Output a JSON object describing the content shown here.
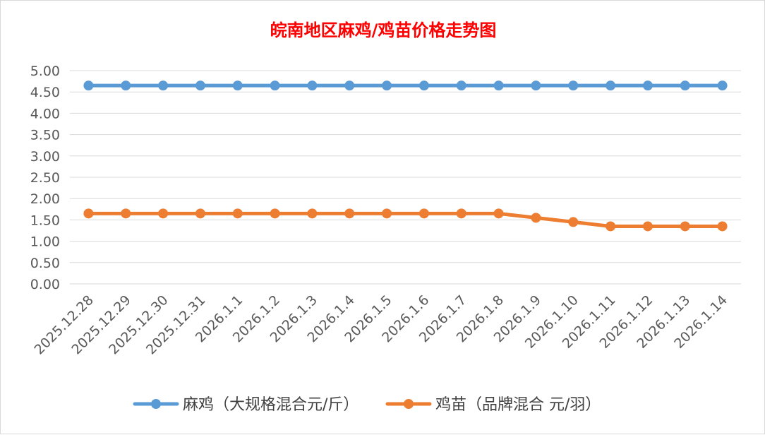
{
  "chart_data": {
    "type": "line",
    "title": "皖南地区麻鸡/鸡苗价格走势图",
    "categories": [
      "2025.12.28",
      "2025.12.29",
      "2025.12.30",
      "2025.12.31",
      "2026.1.1",
      "2026.1.2",
      "2026.1.3",
      "2026.1.4",
      "2026.1.5",
      "2026.1.6",
      "2026.1.7",
      "2026.1.8",
      "2026.1.9",
      "2026.1.10",
      "2026.1.11",
      "2026.1.12",
      "2026.1.13",
      "2026.1.14"
    ],
    "ylim": [
      0,
      5
    ],
    "ytick_labels": [
      "5.00",
      "4.50",
      "4.00",
      "3.50",
      "3.00",
      "2.50",
      "2.00",
      "1.50",
      "1.00",
      "0.50",
      "0.00"
    ],
    "grid": true,
    "legend_position": "bottom",
    "series": [
      {
        "name": "麻鸡（大规格混合元/斤）",
        "color": "#5b9bd5",
        "values": [
          4.65,
          4.65,
          4.65,
          4.65,
          4.65,
          4.65,
          4.65,
          4.65,
          4.65,
          4.65,
          4.65,
          4.65,
          4.65,
          4.65,
          4.65,
          4.65,
          4.65,
          4.65
        ]
      },
      {
        "name": "鸡苗（品牌混合 元/羽）",
        "color": "#ed7d31",
        "values": [
          1.65,
          1.65,
          1.65,
          1.65,
          1.65,
          1.65,
          1.65,
          1.65,
          1.65,
          1.65,
          1.65,
          1.65,
          1.55,
          1.45,
          1.35,
          1.35,
          1.35,
          1.35
        ]
      }
    ]
  }
}
